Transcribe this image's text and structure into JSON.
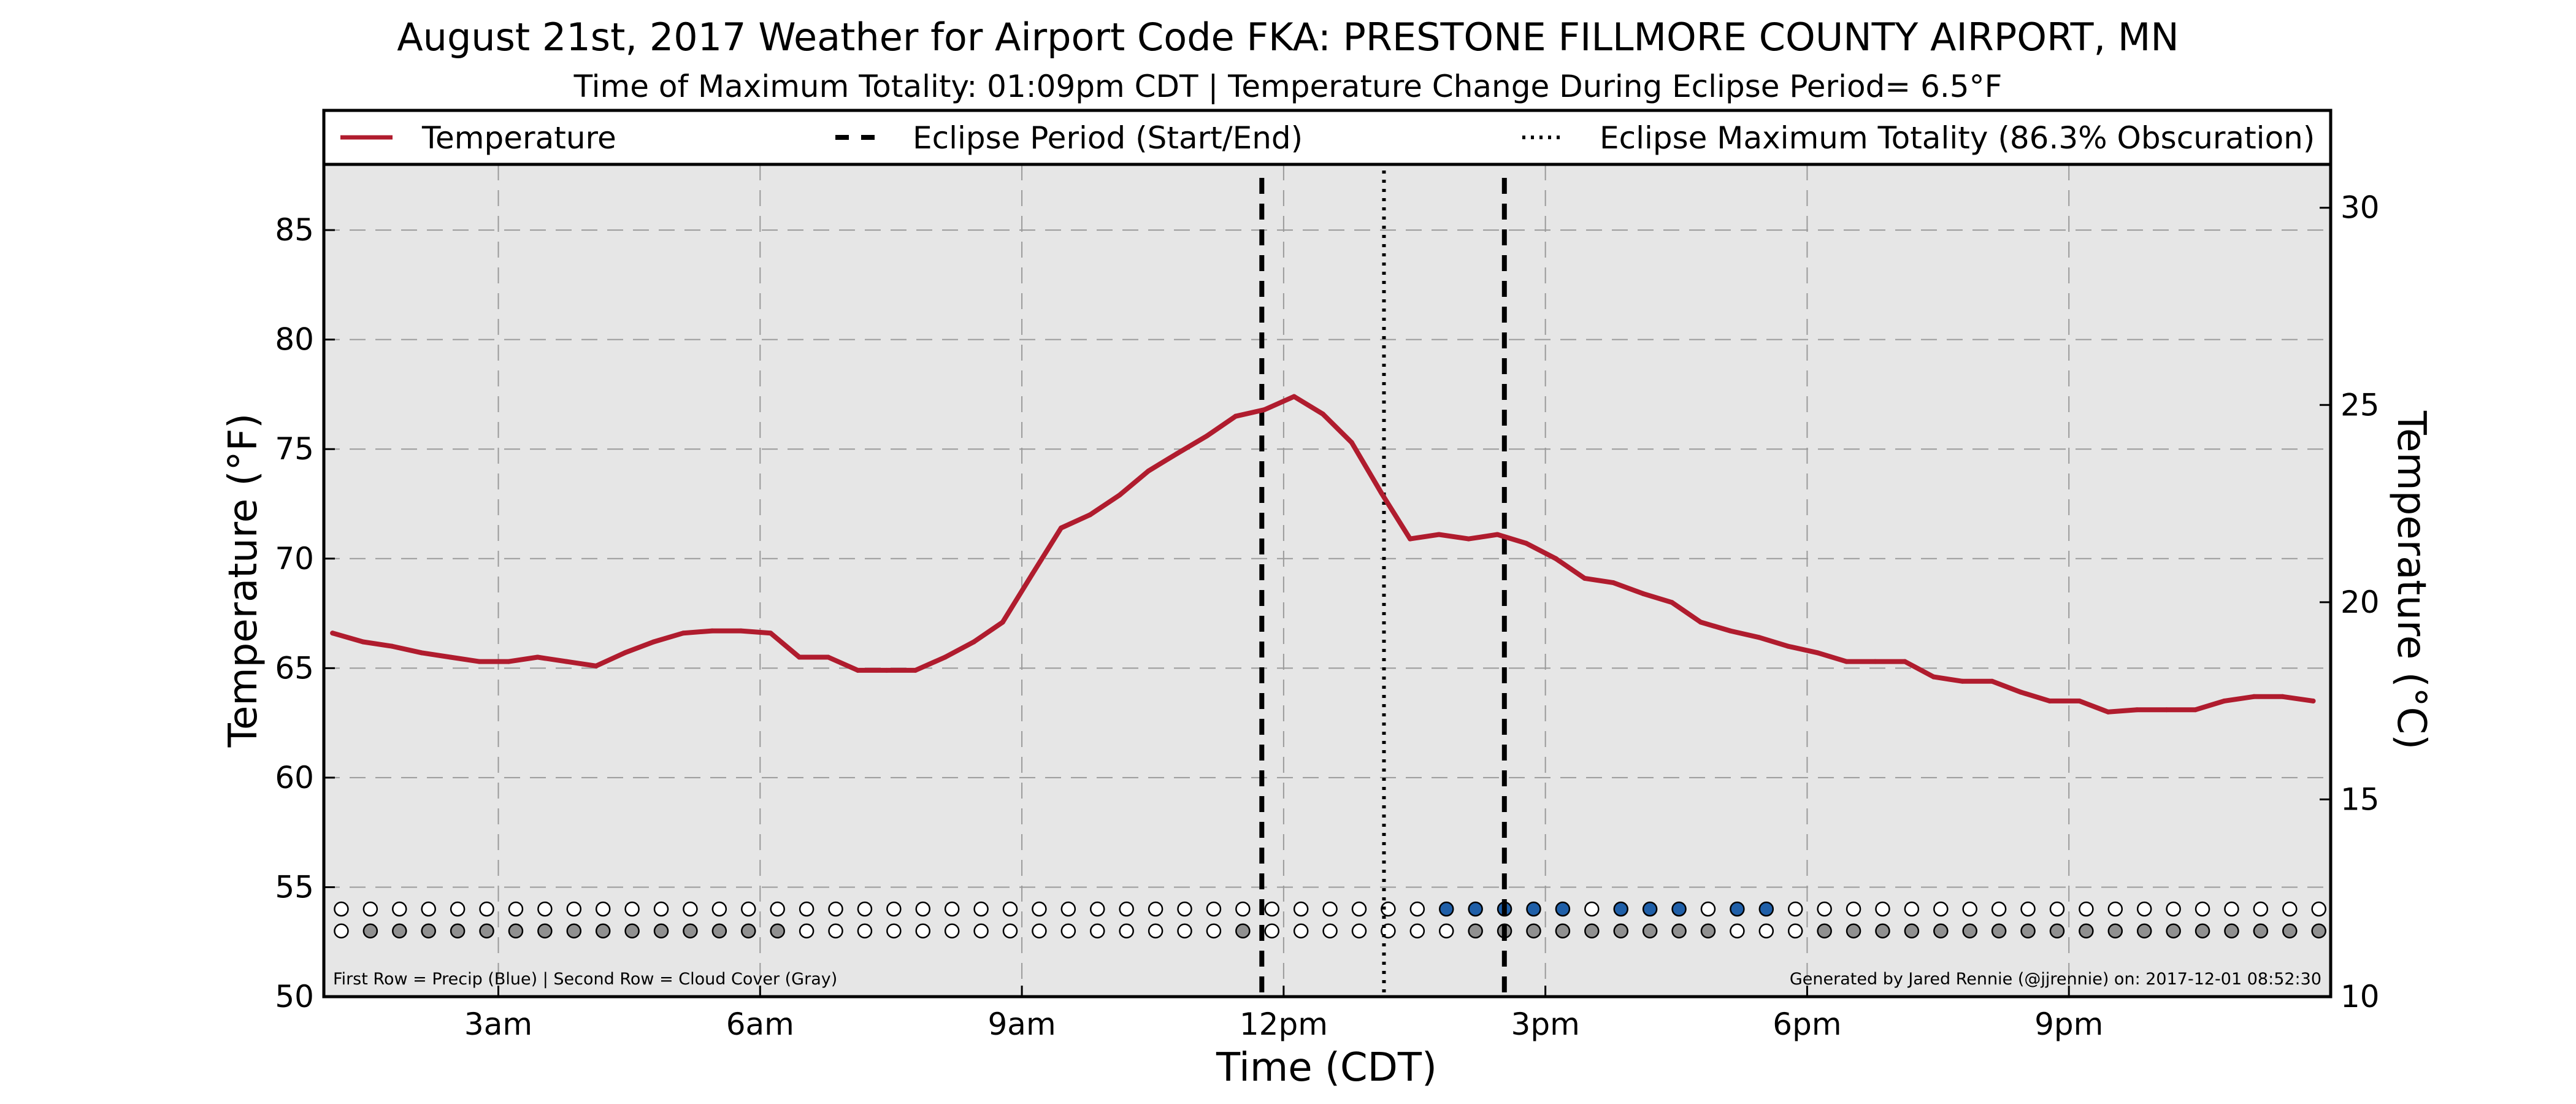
{
  "chart_data": {
    "type": "line",
    "title": "August 21st, 2017 Weather for Airport Code FKA: PRESTONE FILLMORE COUNTY AIRPORT, MN",
    "subtitle": "Time of Maximum Totality: 01:09pm CDT | Temperature Change During Eclipse Period= 6.5°F",
    "xlabel": "Time (CDT)",
    "ylabel_left": "Temperature (°F)",
    "ylabel_right": "Temperature (°C)",
    "ylim": [
      50,
      88
    ],
    "y2lim": [
      10,
      31.1
    ],
    "xlim_hours": [
      1.0,
      24.0
    ],
    "x_ticks": [
      {
        "hour": 3,
        "label": "3am"
      },
      {
        "hour": 6,
        "label": "6am"
      },
      {
        "hour": 9,
        "label": "9am"
      },
      {
        "hour": 12,
        "label": "12pm"
      },
      {
        "hour": 15,
        "label": "3pm"
      },
      {
        "hour": 18,
        "label": "6pm"
      },
      {
        "hour": 21,
        "label": "9pm"
      }
    ],
    "y_ticks": [
      50,
      55,
      60,
      65,
      70,
      75,
      80,
      85
    ],
    "y2_ticks": [
      10,
      15,
      20,
      25,
      30
    ],
    "grid": true,
    "legend": {
      "placement": "top",
      "entries": [
        {
          "label": "Temperature",
          "style": "solid"
        },
        {
          "label": "Eclipse Period (Start/End)",
          "style": "dashed"
        },
        {
          "label": "Eclipse Maximum Totality (86.3% Obscuration)",
          "style": "dotted"
        }
      ]
    },
    "colors": {
      "temperature": "#b01c2e",
      "plot_background": "#e6e6e6",
      "precip": "#1f5fa8",
      "cloud": "#909090",
      "empty": "#ffffff"
    },
    "series": [
      {
        "name": "Temperature",
        "x_hours": [
          1.1,
          1.45,
          1.78,
          2.12,
          2.45,
          2.78,
          3.12,
          3.45,
          3.78,
          4.12,
          4.45,
          4.78,
          5.12,
          5.45,
          5.78,
          6.12,
          6.45,
          6.78,
          7.12,
          7.45,
          7.78,
          8.12,
          8.45,
          8.78,
          9.12,
          9.45,
          9.78,
          10.12,
          10.45,
          10.78,
          11.12,
          11.45,
          11.78,
          12.12,
          12.45,
          12.78,
          13.12,
          13.45,
          13.78,
          14.12,
          14.45,
          14.78,
          15.12,
          15.45,
          15.78,
          16.12,
          16.45,
          16.78,
          17.12,
          17.45,
          17.78,
          18.12,
          18.45,
          18.78,
          19.12,
          19.45,
          19.78,
          20.12,
          20.45,
          20.78,
          21.12,
          21.45,
          21.78,
          22.12,
          22.45,
          22.78,
          23.12,
          23.45,
          23.8
        ],
        "values": [
          66.6,
          66.2,
          66.0,
          65.7,
          65.5,
          65.3,
          65.3,
          65.5,
          65.3,
          65.1,
          65.7,
          66.2,
          66.6,
          66.7,
          66.7,
          66.6,
          65.5,
          65.5,
          64.9,
          64.9,
          64.9,
          65.5,
          66.2,
          67.1,
          69.3,
          71.4,
          72.0,
          72.9,
          74.0,
          74.8,
          75.6,
          76.5,
          76.8,
          77.4,
          76.6,
          75.3,
          73.0,
          70.9,
          71.1,
          70.9,
          71.1,
          70.7,
          70.0,
          69.1,
          68.9,
          68.4,
          68.0,
          67.1,
          66.7,
          66.4,
          66.0,
          65.7,
          65.3,
          65.3,
          65.3,
          64.6,
          64.4,
          64.4,
          63.9,
          63.5,
          63.5,
          63.0,
          63.1,
          63.1,
          63.1,
          63.5,
          63.7,
          63.7,
          63.5
        ]
      }
    ],
    "eclipse": {
      "start_hour": 11.75,
      "end_hour": 14.53,
      "max_hour": 13.15
    },
    "markers": {
      "x_start_hour": 1.2,
      "step_hours": 0.3333,
      "count": 69,
      "precip_row_y": 54.0,
      "cloud_row_y": 53.0,
      "precip_blue_indices": [
        38,
        39,
        40,
        41,
        42,
        44,
        45,
        46,
        48,
        49
      ],
      "cloud_gray_indices": [
        1,
        2,
        3,
        4,
        5,
        6,
        7,
        8,
        9,
        10,
        11,
        12,
        13,
        14,
        15,
        31,
        39,
        40,
        41,
        42,
        43,
        44,
        45,
        46,
        47,
        51,
        52,
        53,
        54,
        55,
        56,
        57,
        58,
        59,
        60,
        61,
        62,
        63,
        64,
        65,
        66,
        67,
        68
      ]
    },
    "annotations": {
      "left_note": "First Row = Precip (Blue) | Second Row = Cloud Cover (Gray)",
      "right_note": "Generated by Jared Rennie (@jjrennie) on: 2017-12-01 08:52:30"
    }
  }
}
